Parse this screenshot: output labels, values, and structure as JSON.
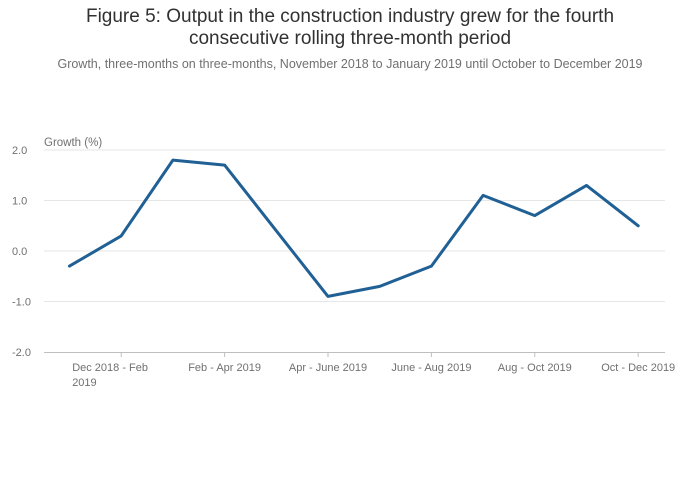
{
  "chart_data": {
    "type": "line",
    "title_lines": [
      "Figure 5: Output in the construction industry grew for the fourth",
      "consecutive rolling three-month period"
    ],
    "subtitle": "Growth, three-months on three-months, November 2018 to January 2019 until October to December 2019",
    "ylabel": "Growth (%)",
    "ylim": [
      -2.0,
      2.0
    ],
    "yticks": [
      "2.0",
      "1.0",
      "0.0",
      "-1.0",
      "-2.0"
    ],
    "ytick_values": [
      2,
      1,
      0,
      -1,
      -2
    ],
    "xtick_labels": [
      {
        "index": 1,
        "lines": [
          "Dec 2018 - Feb",
          "2019"
        ]
      },
      {
        "index": 3,
        "lines": [
          "Feb - Apr 2019"
        ]
      },
      {
        "index": 5,
        "lines": [
          "Apr - June 2019"
        ]
      },
      {
        "index": 7,
        "lines": [
          "June - Aug 2019"
        ]
      },
      {
        "index": 9,
        "lines": [
          "Aug - Oct 2019"
        ]
      },
      {
        "index": 11,
        "lines": [
          "Oct - Dec 2019"
        ]
      }
    ],
    "series": [
      {
        "name": "Growth",
        "color": "#206095",
        "values": [
          -0.3,
          0.3,
          1.8,
          1.7,
          0.4,
          -0.9,
          -0.7,
          -0.3,
          1.1,
          0.7,
          1.3,
          0.5
        ]
      }
    ]
  }
}
